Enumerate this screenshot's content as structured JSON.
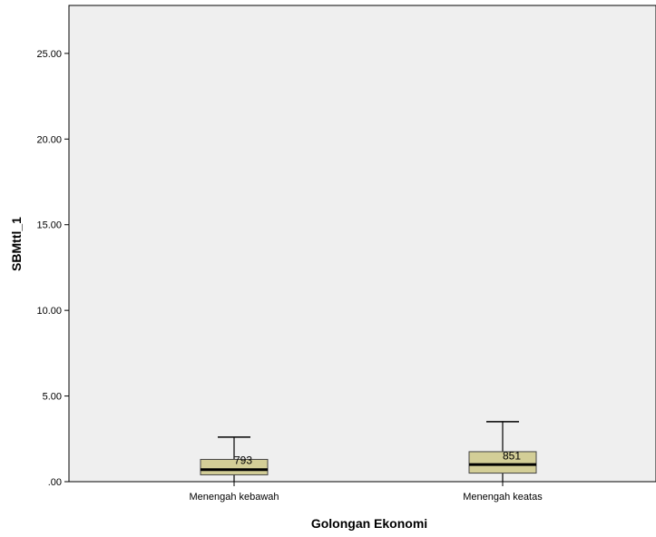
{
  "chart_data": {
    "type": "boxplot",
    "title": "",
    "xlabel": "Golongan Ekonomi",
    "ylabel": "SBMttl_1",
    "ylim": [
      0,
      27.8
    ],
    "yticks": [
      0,
      5,
      10,
      15,
      20,
      25
    ],
    "ytick_labels": [
      ".00",
      "5.00",
      "10.00",
      "15.00",
      "20.00",
      "25.00"
    ],
    "grid": false,
    "categories": [
      "Menengah kebawah",
      "Menengah keatas"
    ],
    "boxes": [
      {
        "category": "Menengah kebawah",
        "min": 0.0,
        "q1": 0.4,
        "median": 0.7,
        "q3": 1.3,
        "max": 2.6,
        "outlier_label": "793",
        "outlier_value": 1.25
      },
      {
        "category": "Menengah keatas",
        "min": 0.0,
        "q1": 0.5,
        "median": 1.0,
        "q3": 1.75,
        "max": 3.5,
        "outlier_label": "851",
        "outlier_value": 1.5
      }
    ],
    "colors": {
      "plot_background": "#efefef",
      "box_fill": "#d3ce97",
      "box_stroke": "#444444"
    }
  }
}
